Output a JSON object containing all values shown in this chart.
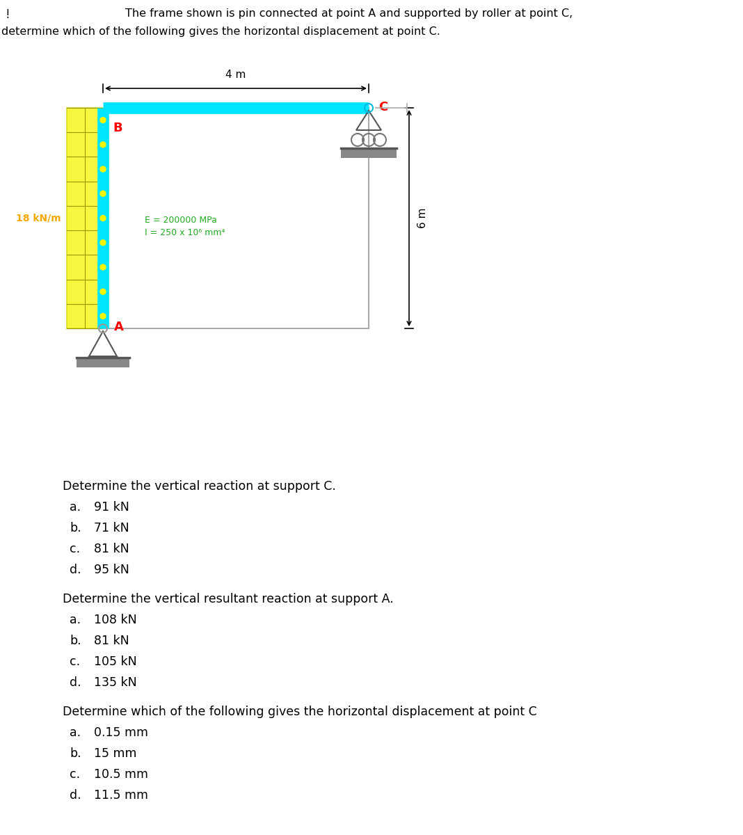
{
  "title_line1": "The frame shown is pin connected at point A and supported by roller at point C,",
  "title_line2": "determine which of the following gives the horizontal displacement at point C.",
  "background_color": "#ffffff",
  "frame_color": "#00e5ff",
  "wall_yellow": "#f5f500",
  "wall_yellow_border": "#cccc00",
  "load_label": "18 kN/m",
  "load_color": "#f5a800",
  "load_dot_color": "#f5f500",
  "E_label": "E = 200000 MPa",
  "I_label": "I = 250 x 10⁶ mm⁴",
  "EI_color": "#22aa22",
  "point_B_label": "B",
  "point_A_label": "A",
  "point_C_label": "C",
  "dim_4m_label": "4 m",
  "dim_6m_label": "6 m",
  "q1_title": "Determine the vertical reaction at support C.",
  "q1_options": [
    [
      "a.",
      "91 kN"
    ],
    [
      "b.",
      "71 kN"
    ],
    [
      "c.",
      "81 kN"
    ],
    [
      "d.",
      "95 kN"
    ]
  ],
  "q2_title": "Determine the vertical resultant reaction at support A.",
  "q2_options": [
    [
      "a.",
      "108 kN"
    ],
    [
      "b.",
      "81 kN"
    ],
    [
      "c.",
      "105 kN"
    ],
    [
      "d.",
      "135 kN"
    ]
  ],
  "q3_title": "Determine which of the following gives the horizontal displacement at point C",
  "q3_options": [
    [
      "a.",
      "0.15 mm"
    ],
    [
      "b.",
      "15 mm"
    ],
    [
      "c.",
      "10.5 mm"
    ],
    [
      "d.",
      "11.5 mm"
    ]
  ]
}
